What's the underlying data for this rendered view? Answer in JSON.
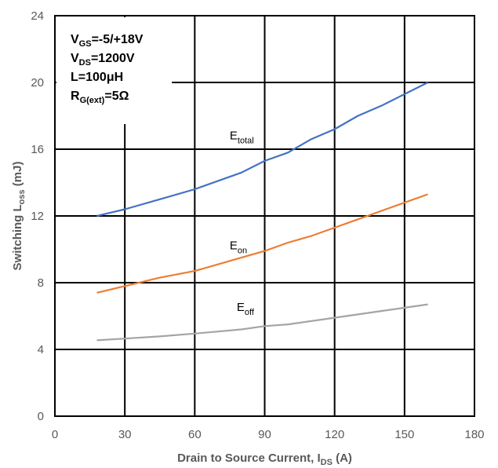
{
  "chart_data": {
    "type": "line",
    "xlabel_main": "Drain to Source Current, I",
    "xlabel_sub": "DS",
    "xlabel_tail": " (A)",
    "ylabel_main": "Switching L",
    "ylabel_sub": "oss",
    "ylabel_tail": " (mJ)",
    "xlim": [
      0,
      180
    ],
    "ylim": [
      0,
      24
    ],
    "xticks": [
      0,
      30,
      60,
      90,
      120,
      150,
      180
    ],
    "yticks": [
      0,
      4,
      8,
      12,
      16,
      20,
      24
    ],
    "grid": true,
    "conditions": [
      {
        "main": "V",
        "sub": "GS",
        "tail": "=-5/+18V"
      },
      {
        "main": "V",
        "sub": "DS",
        "tail": "=1200V"
      },
      {
        "main": "L=100μH",
        "sub": "",
        "tail": ""
      },
      {
        "main": "R",
        "sub": "G(ext)",
        "tail": "=5Ω"
      }
    ],
    "series": [
      {
        "name_main": "E",
        "name_sub": "total",
        "color": "#4472C4",
        "x": [
          18,
          30,
          45,
          60,
          80,
          90,
          100,
          110,
          120,
          130,
          140,
          150,
          160
        ],
        "y": [
          12.0,
          12.4,
          13.0,
          13.6,
          14.6,
          15.3,
          15.8,
          16.6,
          17.2,
          18.0,
          18.6,
          19.3,
          20.0
        ]
      },
      {
        "name_main": "E",
        "name_sub": "on",
        "color": "#ED7D31",
        "x": [
          18,
          30,
          45,
          60,
          80,
          90,
          100,
          110,
          120,
          130,
          140,
          150,
          160
        ],
        "y": [
          7.4,
          7.8,
          8.3,
          8.7,
          9.5,
          9.9,
          10.4,
          10.8,
          11.3,
          11.8,
          12.3,
          12.8,
          13.3
        ]
      },
      {
        "name_main": "E",
        "name_sub": "off",
        "color": "#A5A5A5",
        "x": [
          18,
          30,
          45,
          60,
          80,
          90,
          100,
          110,
          120,
          130,
          140,
          150,
          160
        ],
        "y": [
          4.55,
          4.65,
          4.78,
          4.95,
          5.2,
          5.4,
          5.5,
          5.7,
          5.9,
          6.1,
          6.3,
          6.5,
          6.7
        ]
      }
    ]
  }
}
